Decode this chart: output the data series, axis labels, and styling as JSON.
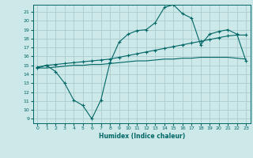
{
  "xlabel": "Humidex (Indice chaleur)",
  "ylabel": "",
  "bg_color": "#cce8e8",
  "grid_color": "#aacccc",
  "line_color": "#006666",
  "xlim": [
    -0.5,
    23.5
  ],
  "ylim": [
    8.5,
    21.8
  ],
  "xticks": [
    0,
    1,
    2,
    3,
    4,
    5,
    6,
    7,
    8,
    9,
    10,
    11,
    12,
    13,
    14,
    15,
    16,
    17,
    18,
    19,
    20,
    21,
    22,
    23
  ],
  "yticks": [
    9,
    10,
    11,
    12,
    13,
    14,
    15,
    16,
    17,
    18,
    19,
    20,
    21
  ],
  "line1_x": [
    0,
    1,
    2,
    3,
    4,
    5,
    6,
    7,
    8,
    9,
    10,
    11,
    12,
    13,
    14,
    15,
    16,
    17,
    18,
    19,
    20,
    21,
    22,
    23
  ],
  "line1_y": [
    14.8,
    15.0,
    14.3,
    13.0,
    11.1,
    10.5,
    9.0,
    11.1,
    15.3,
    17.6,
    18.5,
    18.9,
    19.0,
    19.8,
    21.5,
    21.8,
    20.8,
    20.3,
    17.3,
    18.5,
    18.8,
    19.0,
    18.5,
    15.5
  ],
  "line2_x": [
    0,
    1,
    2,
    3,
    4,
    5,
    6,
    7,
    8,
    9,
    10,
    11,
    12,
    13,
    14,
    15,
    16,
    17,
    18,
    19,
    20,
    21,
    22,
    23
  ],
  "line2_y": [
    14.7,
    15.0,
    15.1,
    15.2,
    15.3,
    15.4,
    15.5,
    15.6,
    15.7,
    15.9,
    16.1,
    16.3,
    16.5,
    16.7,
    16.9,
    17.1,
    17.3,
    17.5,
    17.7,
    17.9,
    18.1,
    18.3,
    18.4,
    18.4
  ],
  "line3_x": [
    0,
    1,
    2,
    3,
    4,
    5,
    6,
    7,
    8,
    9,
    10,
    11,
    12,
    13,
    14,
    15,
    16,
    17,
    18,
    19,
    20,
    21,
    22,
    23
  ],
  "line3_y": [
    14.7,
    14.7,
    14.8,
    14.9,
    15.0,
    15.0,
    15.1,
    15.1,
    15.2,
    15.3,
    15.4,
    15.5,
    15.5,
    15.6,
    15.7,
    15.7,
    15.8,
    15.8,
    15.9,
    15.9,
    15.9,
    15.9,
    15.8,
    15.7
  ]
}
